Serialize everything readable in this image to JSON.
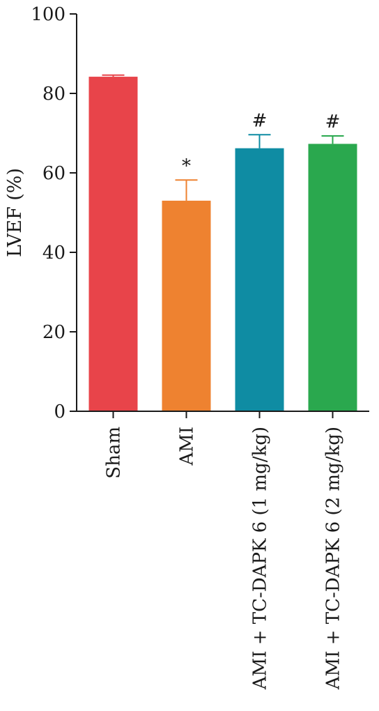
{
  "chart_data": {
    "type": "bar",
    "categories": [
      "Sham",
      "AMI",
      "AMI + TC-DAPK 6 (1 mg/kg)",
      "AMI + TC-DAPK 6 (2 mg/kg)"
    ],
    "values": [
      84.2,
      53.0,
      66.2,
      67.3
    ],
    "errors": [
      0.4,
      5.2,
      3.4,
      2.0
    ],
    "significance": [
      "",
      "*",
      "#",
      "#"
    ],
    "colors": [
      "#e8444a",
      "#ee8230",
      "#0f8ca3",
      "#2aa84e"
    ],
    "ylabel": "LVEF (%)",
    "ylim": [
      0,
      100
    ],
    "yticks": [
      0,
      20,
      40,
      60,
      80,
      100
    ],
    "grid": false,
    "legend": "none"
  }
}
